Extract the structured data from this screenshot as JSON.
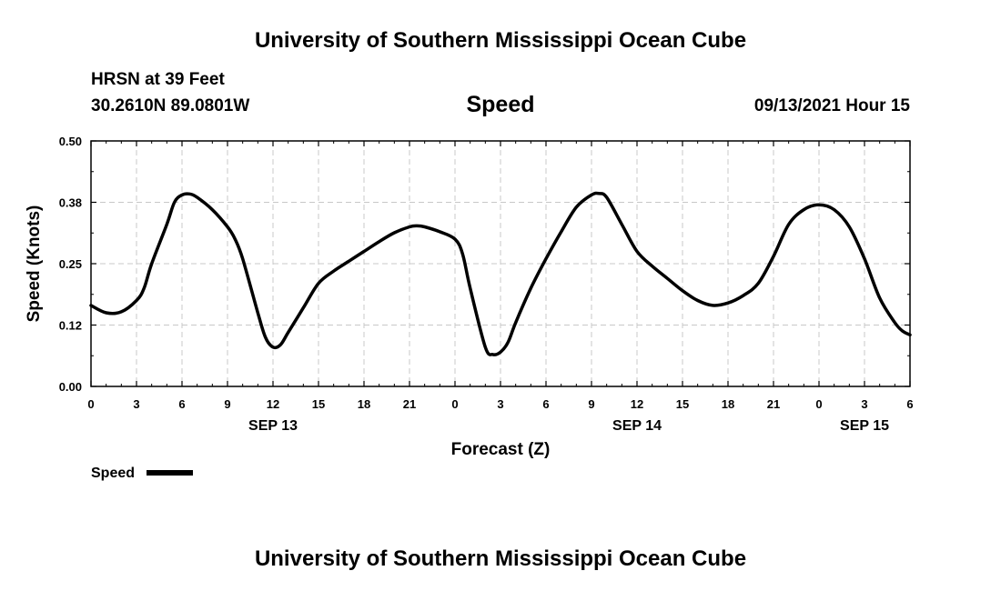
{
  "header": {
    "title_top": "University of Southern Mississippi Ocean Cube",
    "station": "HRSN at 39 Feet",
    "location": "30.2610N  89.0801W",
    "variable": "Speed",
    "issued": "09/13/2021 Hour 15",
    "title_bottom": "University of Southern Mississippi Ocean Cube"
  },
  "legend": {
    "label": "Speed",
    "color": "#000000"
  },
  "chart_data": {
    "type": "line",
    "title": "Speed",
    "xlabel": "Forecast (Z)",
    "ylabel": "Speed (Knots)",
    "xlim": [
      0,
      54
    ],
    "ylim": [
      0,
      0.5
    ],
    "grid": true,
    "legend_position": "bottom-left",
    "x_ticks": [
      0,
      3,
      6,
      9,
      12,
      15,
      18,
      21,
      24,
      27,
      30,
      33,
      36,
      39,
      42,
      45,
      48,
      51,
      54
    ],
    "x_tick_labels": [
      "0",
      "3",
      "6",
      "9",
      "12",
      "15",
      "18",
      "21",
      "0",
      "3",
      "6",
      "9",
      "12",
      "15",
      "18",
      "21",
      "0",
      "3",
      "6"
    ],
    "y_ticks": [
      0.0,
      0.125,
      0.25,
      0.375,
      0.5
    ],
    "y_tick_labels": [
      "0.00",
      "0.12",
      "0.25",
      "0.38",
      "0.50"
    ],
    "day_labels": [
      {
        "x": 12,
        "label": "SEP 13"
      },
      {
        "x": 36,
        "label": "SEP 14"
      },
      {
        "x": 51,
        "label": "SEP 15"
      }
    ],
    "series": [
      {
        "name": "Speed",
        "color": "#000000",
        "x": [
          0,
          1,
          2,
          3,
          3.5,
          4,
          5,
          5.5,
          6,
          6.5,
          7,
          8,
          9,
          9.5,
          10,
          11,
          11.5,
          12,
          12.5,
          13,
          14,
          15,
          16,
          17,
          18,
          19,
          20,
          21,
          21.5,
          22,
          23,
          24,
          24.5,
          25,
          26,
          26.5,
          27,
          27.5,
          28,
          29,
          30,
          31,
          32,
          33,
          33.5,
          34,
          35,
          36,
          37,
          38,
          39,
          40,
          41,
          42,
          43,
          44,
          45,
          46,
          47,
          48,
          49,
          50,
          51,
          52,
          53,
          53.5,
          54
        ],
        "y": [
          0.165,
          0.15,
          0.152,
          0.175,
          0.2,
          0.25,
          0.33,
          0.375,
          0.39,
          0.392,
          0.385,
          0.36,
          0.325,
          0.3,
          0.26,
          0.15,
          0.1,
          0.08,
          0.085,
          0.11,
          0.16,
          0.21,
          0.235,
          0.255,
          0.275,
          0.295,
          0.313,
          0.325,
          0.327,
          0.325,
          0.315,
          0.3,
          0.27,
          0.2,
          0.08,
          0.065,
          0.07,
          0.09,
          0.13,
          0.2,
          0.26,
          0.315,
          0.365,
          0.39,
          0.393,
          0.385,
          0.33,
          0.275,
          0.245,
          0.22,
          0.195,
          0.175,
          0.165,
          0.17,
          0.185,
          0.21,
          0.265,
          0.33,
          0.36,
          0.37,
          0.36,
          0.325,
          0.26,
          0.18,
          0.13,
          0.113,
          0.105
        ]
      }
    ]
  }
}
